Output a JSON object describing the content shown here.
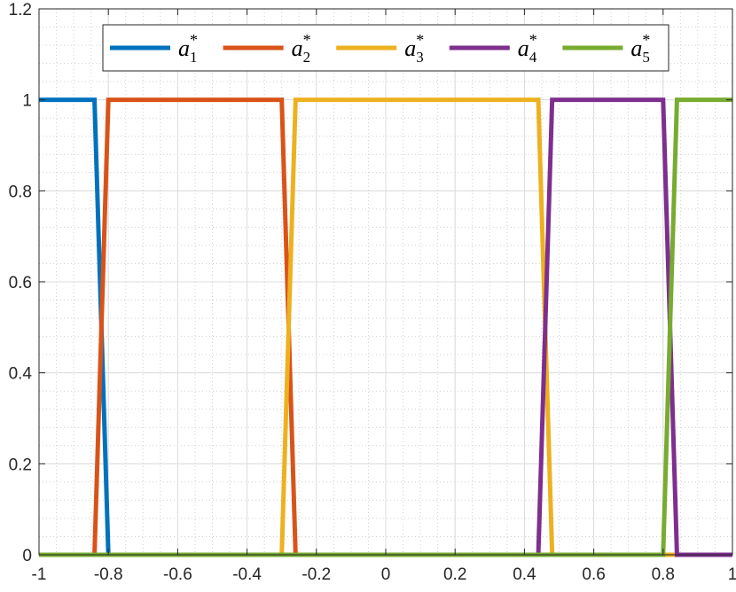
{
  "chart_data": {
    "type": "line",
    "title": "",
    "xlabel": "",
    "ylabel": "",
    "xlim": [
      -1,
      1
    ],
    "ylim": [
      0,
      1.2
    ],
    "x_ticks": [
      -1,
      -0.8,
      -0.6,
      -0.4,
      -0.2,
      0,
      0.2,
      0.4,
      0.6,
      0.8,
      1
    ],
    "x_tick_labels": [
      "-1",
      "-0.8",
      "-0.6",
      "-0.4",
      "-0.2",
      "0",
      "0.2",
      "0.4",
      "0.6",
      "0.8",
      "1"
    ],
    "y_ticks": [
      0,
      0.2,
      0.4,
      0.6,
      0.8,
      1,
      1.2
    ],
    "y_tick_labels": [
      "0",
      "0.2",
      "0.4",
      "0.6",
      "0.8",
      "1",
      "1.2"
    ],
    "grid": true,
    "minor_grid": true,
    "legend_placement": "top",
    "series": [
      {
        "name": "a1*",
        "base": "a",
        "sub": "1",
        "sup": "*",
        "color": "#0072BD",
        "x": [
          -1,
          -0.84,
          -0.8,
          1
        ],
        "y": [
          1,
          1,
          0,
          0
        ]
      },
      {
        "name": "a2*",
        "base": "a",
        "sub": "2",
        "sup": "*",
        "color": "#D95319",
        "x": [
          -1,
          -0.84,
          -0.8,
          -0.3,
          -0.26,
          1
        ],
        "y": [
          0,
          0,
          1,
          1,
          0,
          0
        ]
      },
      {
        "name": "a3*",
        "base": "a",
        "sub": "3",
        "sup": "*",
        "color": "#EDB120",
        "x": [
          -1,
          -0.3,
          -0.26,
          0.44,
          0.48,
          1
        ],
        "y": [
          0,
          0,
          1,
          1,
          0,
          0
        ]
      },
      {
        "name": "a4*",
        "base": "a",
        "sub": "4",
        "sup": "*",
        "color": "#7E2F8E",
        "x": [
          -1,
          0.44,
          0.48,
          0.8,
          0.84,
          1
        ],
        "y": [
          0,
          0,
          1,
          1,
          0,
          0
        ]
      },
      {
        "name": "a5*",
        "base": "a",
        "sub": "5",
        "sup": "*",
        "color": "#77AC30",
        "x": [
          -1,
          0.8,
          0.84,
          1
        ],
        "y": [
          0,
          0,
          1,
          1
        ]
      }
    ]
  }
}
